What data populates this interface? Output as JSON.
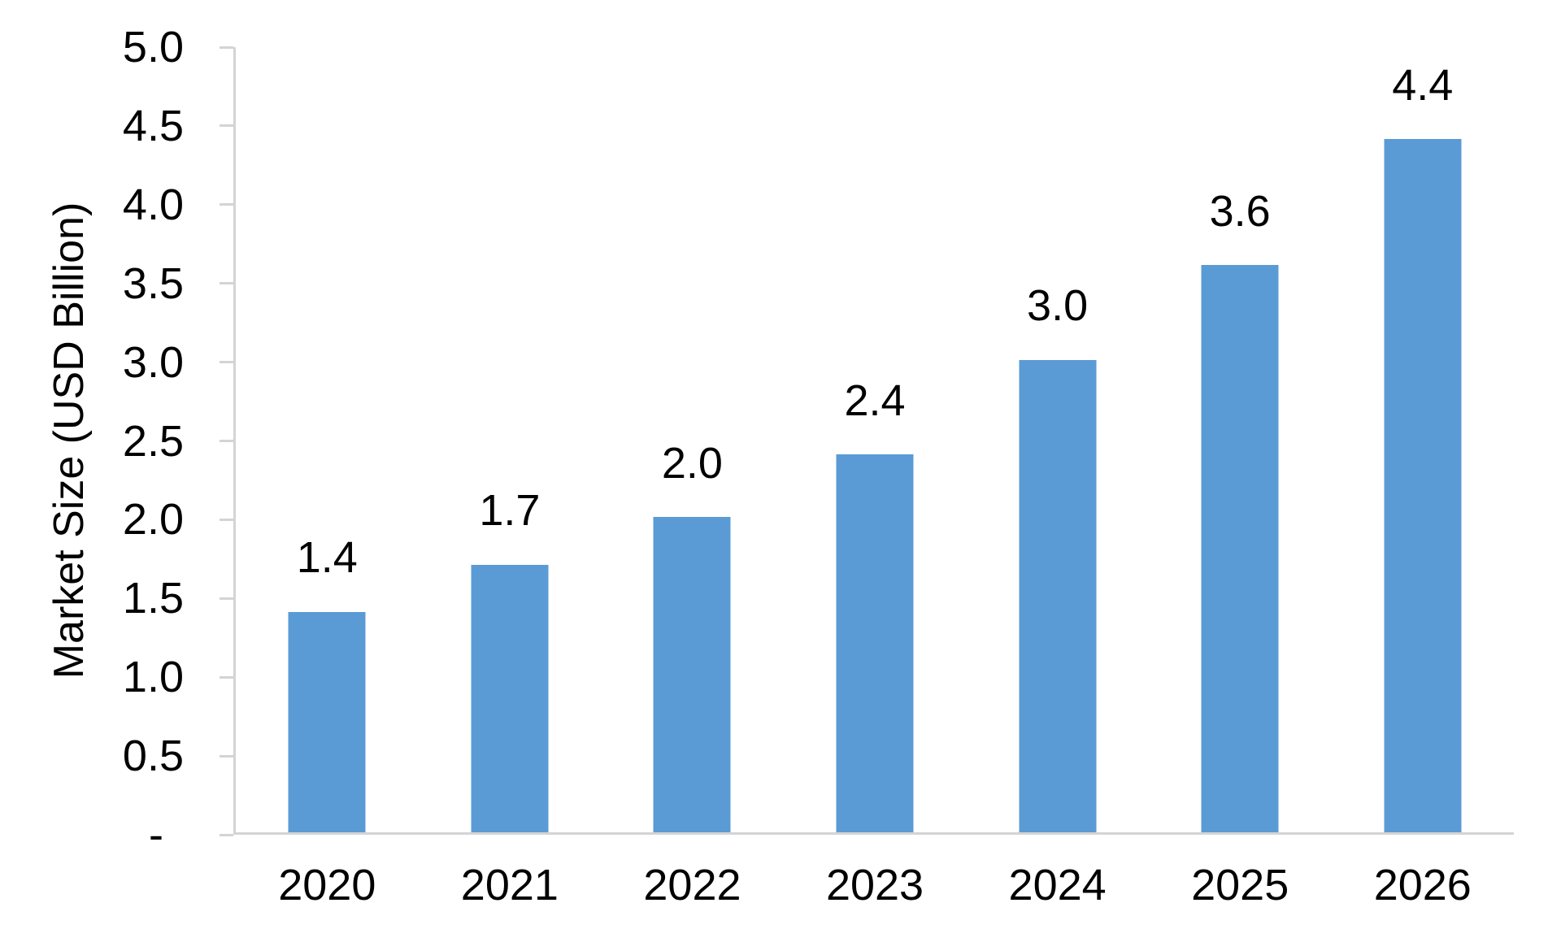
{
  "chart_data": {
    "type": "bar",
    "title": "",
    "categories": [
      "2020",
      "2021",
      "2022",
      "2023",
      "2024",
      "2025",
      "2026"
    ],
    "values": [
      1.4,
      1.7,
      2.0,
      2.4,
      3.0,
      3.6,
      4.4
    ],
    "data_labels": [
      "1.4",
      "1.7",
      "2.0",
      "2.4",
      "3.0",
      "3.6",
      "4.4"
    ],
    "xlabel": "",
    "ylabel": "Market Size (USD Billion)",
    "ylim": [
      0,
      5
    ],
    "ytick_interval": 0.5,
    "ytick_labels_top_to_bottom": [
      "5.0",
      "4.5",
      "4.0",
      "3.5",
      "3.0",
      "2.5",
      "2.0",
      "1.5",
      "1.0",
      "0.5",
      "-"
    ],
    "grid": false,
    "legend_position": "none",
    "series_count": 1,
    "colors": {
      "bar_fill": "#5B9BD5",
      "axis_line": "#D4D4D4",
      "text": "#000000",
      "background": "#FFFFFF"
    }
  }
}
